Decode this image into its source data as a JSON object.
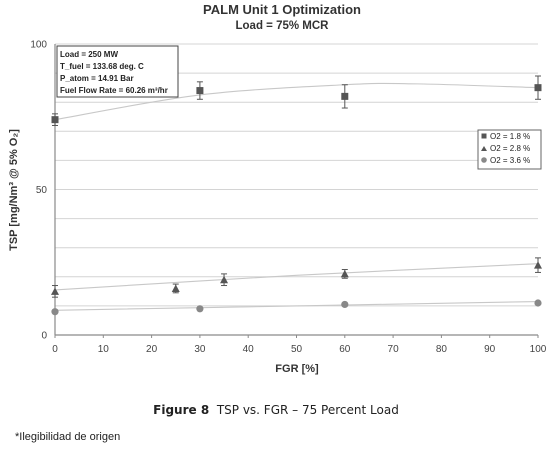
{
  "chart_data": {
    "type": "scatter",
    "title": "PALM Unit 1 Optimization",
    "subtitle": "Load = 75% MCR",
    "xlabel": "FGR [%]",
    "ylabel": "TSP [mg/Nm³ @ 5% O₂]",
    "xlim": [
      0,
      100
    ],
    "ylim": [
      0,
      100
    ],
    "x_ticks": [
      0,
      10,
      20,
      30,
      40,
      50,
      60,
      70,
      80,
      90,
      100
    ],
    "y_ticks": [
      0,
      50,
      100
    ],
    "grid": true,
    "legend_position": "right",
    "annotation": [
      "Load = 250 MW",
      "T_fuel = 133.68 deg. C",
      "P_atom = 14.91 Bar",
      "Fuel Flow Rate = 60.26 m³/hr"
    ],
    "series": [
      {
        "name": "O2 = 1.8 %",
        "marker": "square",
        "color": "#555555",
        "points": [
          {
            "x": 0,
            "y": 74,
            "err": 2
          },
          {
            "x": 30,
            "y": 84,
            "err": 3
          },
          {
            "x": 60,
            "y": 82,
            "err": 4
          },
          {
            "x": 100,
            "y": 85,
            "err": 4
          }
        ],
        "trend": [
          [
            0,
            74
          ],
          [
            30,
            82.5
          ],
          [
            60,
            86
          ],
          [
            75,
            86.3
          ],
          [
            100,
            85
          ]
        ]
      },
      {
        "name": "O2 = 2.8 %",
        "marker": "triangle",
        "color": "#555555",
        "points": [
          {
            "x": 0,
            "y": 15,
            "err": 2
          },
          {
            "x": 25,
            "y": 16,
            "err": 1.5
          },
          {
            "x": 35,
            "y": 19,
            "err": 2
          },
          {
            "x": 60,
            "y": 21,
            "err": 1.5
          },
          {
            "x": 100,
            "y": 24,
            "err": 2.5
          }
        ],
        "trend": [
          [
            0,
            15.5
          ],
          [
            50,
            20.5
          ],
          [
            100,
            24.5
          ]
        ]
      },
      {
        "name": "O2 = 3.6 %",
        "marker": "circle",
        "color": "#888888",
        "points": [
          {
            "x": 0,
            "y": 8
          },
          {
            "x": 30,
            "y": 9
          },
          {
            "x": 60,
            "y": 10.5
          },
          {
            "x": 100,
            "y": 11
          }
        ],
        "trend": [
          [
            0,
            8.5
          ],
          [
            50,
            10
          ],
          [
            100,
            11.5
          ]
        ]
      }
    ]
  },
  "caption": {
    "figure": "Figure 8",
    "text": "TSP vs. FGR – 75 Percent Load"
  },
  "footnote": "*Ilegibilidad de origen"
}
